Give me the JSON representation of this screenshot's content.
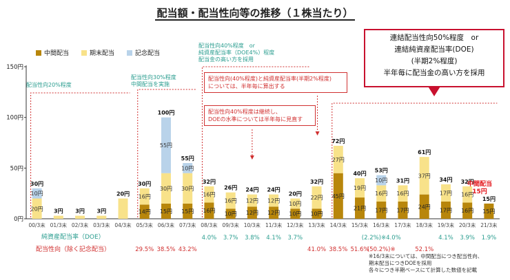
{
  "title": "配当額・配当性向等の推移（１株当たり）",
  "legend": [
    {
      "key": "interim",
      "label": "中間配当",
      "color": "#b8860b"
    },
    {
      "key": "final",
      "label": "期末配当",
      "color": "#f8e28a"
    },
    {
      "key": "commemorative",
      "label": "記念配当",
      "color": "#b9d3ea"
    }
  ],
  "notes": {
    "policy20": "配当性向20%程度",
    "policy30": "配当性向30%程度\n中間配当を実施",
    "policy40": "配当性向40%程度　or\n純資産配当率（DOE4%）程度\n配当金の高い方を採用",
    "box_doe2": "配当性向(40%程度)と純資産配当率(半期2%程度)\nについては、半年毎に算出する",
    "box_continue": "配当性向40%程度は継続し、\nDOEの水準については半年毎に見直す",
    "big_box": "連結配当性向50%程度　or\n連結純資産配当率(DOE)\n(半期2%程度)\n半年毎に配当金の高い方を採用",
    "interim_label": "中間配当\n15円",
    "footnote": "※16/3末については、中間配当につき配当性向、\n期末配当につきDOEを採用\n各々につき半期ベースにて計算した数値を記載"
  },
  "rows": {
    "doe_label": "純資産配当率（DOE）",
    "payout_label": "配当性向（除く記念配当）",
    "doe_values": [
      "",
      "",
      "",
      "",
      "",
      "",
      "",
      "",
      "4.0%",
      "3.7%",
      "3.8%",
      "4.1%",
      "3.7%",
      "",
      "",
      "",
      "(2.2%)※4.0%",
      "",
      "",
      "4.1%",
      "3.9%",
      "1.9%"
    ],
    "payout_values": [
      "",
      "",
      "",
      "",
      "",
      "29.5%",
      "38.5%",
      "43.2%",
      "",
      "",
      "",
      "",
      "",
      "41.0%",
      "38.5%",
      "51.6%",
      "(50.2%)※",
      "",
      "52.1%",
      "",
      "",
      ""
    ]
  },
  "chart_data": {
    "type": "bar",
    "stacked": true,
    "categories": [
      "00/3末",
      "01/3末",
      "02/3末",
      "03/3末",
      "04/3末",
      "05/3末",
      "06/3末",
      "07/3末",
      "08/3末",
      "09/3末",
      "10/3末",
      "11/3末",
      "12/3末",
      "13/3末",
      "14/3末",
      "15/3末",
      "16/3末",
      "17/3末",
      "18/3末",
      "19/3末",
      "20/3末",
      "21/3末"
    ],
    "ylim": [
      0,
      150
    ],
    "yticks": [
      0,
      50,
      100,
      150
    ],
    "ytick_labels": [
      "0円",
      "50円",
      "100円",
      "150円"
    ],
    "series": [
      {
        "name": "中間配当",
        "values": [
          0,
          0,
          0,
          0,
          0,
          14,
          15,
          15,
          16,
          10,
          12,
          12,
          10,
          10,
          45,
          21,
          17,
          17,
          24,
          17,
          16,
          15
        ],
        "labels": [
          "",
          "",
          "",
          "",
          "",
          "14円",
          "15円",
          "15円",
          "16円",
          "10円",
          "12円",
          "12円",
          "10円",
          "10円",
          "45円",
          "21円",
          "17円",
          "17円",
          "24円",
          "17円",
          "16円",
          "15円"
        ]
      },
      {
        "name": "期末配当",
        "values": [
          20,
          3,
          3,
          3,
          20,
          16,
          30,
          30,
          16,
          16,
          12,
          12,
          10,
          22,
          27,
          19,
          16,
          16,
          37,
          17,
          16,
          0
        ],
        "labels": [
          "20円",
          "",
          "",
          "",
          "",
          "16円",
          "30円",
          "30円",
          "16円",
          "16円",
          "12円",
          "12円",
          "10円",
          "22円",
          "27円",
          "19円",
          "16円",
          "16円",
          "37円",
          "17円",
          "16円",
          ""
        ]
      },
      {
        "name": "記念配当",
        "values": [
          10,
          0,
          0,
          0,
          0,
          0,
          55,
          10,
          0,
          0,
          0,
          0,
          0,
          0,
          0,
          0,
          10,
          0,
          0,
          0,
          0,
          0
        ],
        "labels": [
          "10円",
          "",
          "",
          "",
          "",
          "",
          "55円",
          "10円",
          "",
          "",
          "",
          "",
          "",
          "",
          "",
          "",
          "10円",
          "",
          "",
          "",
          "",
          ""
        ]
      }
    ],
    "totals": [
      "30円",
      "3円",
      "3円",
      "3円",
      "20円",
      "30円",
      "100円",
      "55円",
      "32円",
      "26円",
      "24円",
      "24円",
      "20円",
      "32円",
      "72円",
      "40円",
      "53円",
      "31円",
      "61円",
      "34円",
      "32円",
      "15円"
    ]
  }
}
